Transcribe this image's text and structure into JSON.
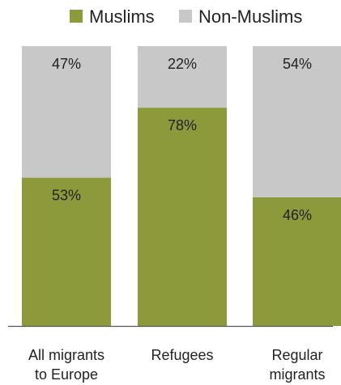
{
  "chart_data": {
    "type": "bar",
    "stacked": true,
    "percent_stacked": true,
    "categories": [
      [
        "All migrants",
        "to Europe"
      ],
      [
        "Refugees"
      ],
      [
        "Regular",
        "migrants"
      ]
    ],
    "series": [
      {
        "name": "Muslims",
        "color": "#8c9a3b",
        "values": [
          53,
          78,
          46
        ],
        "labels": [
          "53%",
          "78%",
          "46%"
        ]
      },
      {
        "name": "Non-Muslims",
        "color": "#c8c8c8",
        "values": [
          47,
          22,
          54
        ],
        "labels": [
          "47%",
          "22%",
          "54%"
        ]
      }
    ],
    "ylim": [
      0,
      100
    ],
    "legend_position": "top",
    "grid": false
  }
}
